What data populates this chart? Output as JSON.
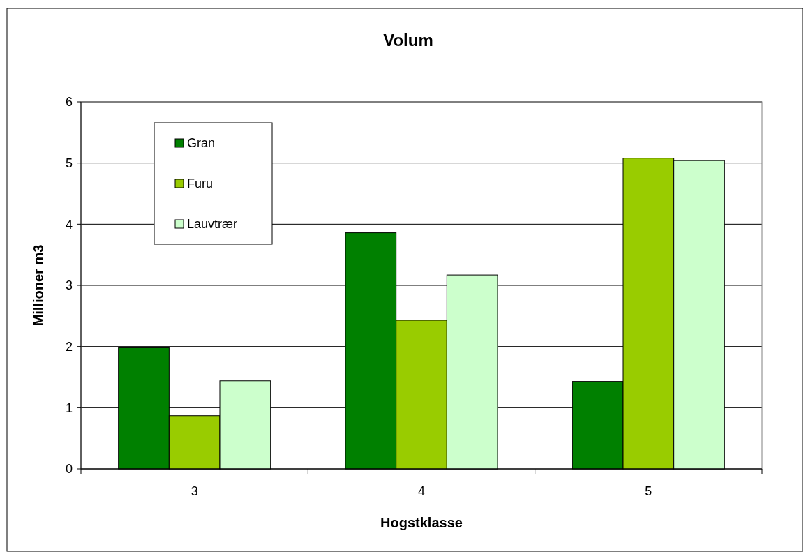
{
  "chart_data": {
    "type": "bar",
    "title": "Volum",
    "xlabel": "Hogstklasse",
    "ylabel": "Millioner m3",
    "categories": [
      "3",
      "4",
      "5"
    ],
    "series": [
      {
        "name": "Gran",
        "color": "#008000",
        "values": [
          1.98,
          3.86,
          1.43
        ]
      },
      {
        "name": "Furu",
        "color": "#99cc00",
        "values": [
          0.87,
          2.43,
          5.08
        ]
      },
      {
        "name": "Lauvtrær",
        "color": "#ccffcc",
        "values": [
          1.44,
          3.17,
          5.04
        ]
      }
    ],
    "ylim": [
      0,
      6
    ],
    "yticks": [
      0,
      1,
      2,
      3,
      4,
      5,
      6
    ],
    "grid": "y",
    "legend": "top left"
  }
}
